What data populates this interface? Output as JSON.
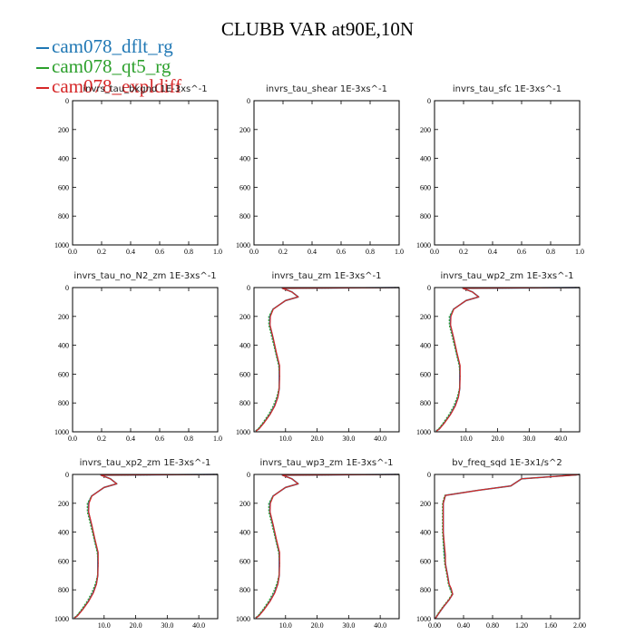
{
  "title": "CLUBB VAR at90E,10N",
  "legend": [
    {
      "label": "cam078_dflt_rg",
      "color": "#1f77b4"
    },
    {
      "label": "cam078_qt5_rg",
      "color": "#2ca02c"
    },
    {
      "label": "cam078_expldiff",
      "color": "#d62728"
    }
  ],
  "chart_data": [
    {
      "type": "line",
      "title": "invrs_tau_bkgnd   1E-3xs^-1",
      "xlim": [
        0,
        1
      ],
      "ylim": [
        1000,
        0
      ],
      "x_ticks": [
        "0.0",
        "0.2",
        "0.4",
        "0.6",
        "0.8",
        "1.0"
      ],
      "y_ticks": [
        "0",
        "200",
        "400",
        "600",
        "800",
        "1000"
      ],
      "series": []
    },
    {
      "type": "line",
      "title": "invrs_tau_shear   1E-3xs^-1",
      "xlim": [
        0,
        1
      ],
      "ylim": [
        1000,
        0
      ],
      "x_ticks": [
        "0.0",
        "0.2",
        "0.4",
        "0.6",
        "0.8",
        "1.0"
      ],
      "y_ticks": [
        "0",
        "200",
        "400",
        "600",
        "800",
        "1000"
      ],
      "series": []
    },
    {
      "type": "line",
      "title": "invrs_tau_sfc   1E-3xs^-1",
      "xlim": [
        0,
        1
      ],
      "ylim": [
        1000,
        0
      ],
      "x_ticks": [
        "0.0",
        "0.2",
        "0.4",
        "0.6",
        "0.8",
        "1.0"
      ],
      "y_ticks": [
        "0",
        "200",
        "400",
        "600",
        "800",
        "1000"
      ],
      "series": []
    },
    {
      "type": "line",
      "title": "invrs_tau_no_N2_zm   1E-3xs^-1",
      "xlim": [
        0,
        1
      ],
      "ylim": [
        1000,
        0
      ],
      "x_ticks": [
        "0.0",
        "0.2",
        "0.4",
        "0.6",
        "0.8",
        "1.0"
      ],
      "y_ticks": [
        "0",
        "200",
        "400",
        "600",
        "800",
        "1000"
      ],
      "series": []
    },
    {
      "type": "line",
      "title": "invrs_tau_zm   1E-3xs^-1",
      "xlim": [
        0,
        46
      ],
      "ylim": [
        1000,
        0
      ],
      "x_ticks": [
        "10.0",
        "20.0",
        "30.0",
        "40.0"
      ],
      "y_ticks": [
        "0",
        "200",
        "400",
        "600",
        "800",
        "1000"
      ],
      "series": [
        {
          "x": [
            46,
            9,
            12,
            14,
            10,
            8,
            6,
            5,
            5,
            6,
            7,
            8,
            8,
            8,
            7.5,
            6.5,
            5,
            3,
            1.5,
            0.5
          ],
          "y": [
            0,
            5,
            30,
            65,
            90,
            120,
            150,
            200,
            260,
            350,
            450,
            540,
            620,
            700,
            760,
            820,
            880,
            940,
            980,
            995
          ]
        },
        {
          "x": [
            46,
            9,
            12,
            14,
            10,
            8,
            6,
            4.7,
            4.7,
            5.7,
            6.8,
            7.8,
            8.1,
            7.9,
            7.2,
            6.1,
            4.6,
            2.7,
            1.3,
            0.4
          ],
          "y": [
            0,
            5,
            30,
            65,
            90,
            120,
            150,
            200,
            260,
            350,
            450,
            540,
            620,
            700,
            760,
            820,
            880,
            940,
            980,
            995
          ]
        },
        {
          "x": [
            46,
            9,
            12,
            14,
            10,
            8,
            6.1,
            5.2,
            5.1,
            6.1,
            7.1,
            8.1,
            8.1,
            8,
            7.6,
            6.6,
            5.1,
            3.1,
            1.6,
            0.6
          ],
          "y": [
            0,
            5,
            30,
            65,
            90,
            120,
            150,
            200,
            260,
            350,
            450,
            540,
            620,
            700,
            760,
            820,
            880,
            940,
            980,
            995
          ]
        }
      ]
    },
    {
      "type": "line",
      "title": "invrs_tau_wp2_zm   1E-3xs^-1",
      "xlim": [
        0,
        46
      ],
      "ylim": [
        1000,
        0
      ],
      "x_ticks": [
        "10.0",
        "20.0",
        "30.0",
        "40.0"
      ],
      "y_ticks": [
        "0",
        "200",
        "400",
        "600",
        "800",
        "1000"
      ],
      "series": [
        {
          "x": [
            46,
            9,
            12,
            14,
            10,
            8,
            6,
            5,
            5,
            6,
            7,
            8,
            8,
            8,
            7.5,
            6.5,
            5,
            3,
            1.5,
            0.5
          ],
          "y": [
            0,
            5,
            30,
            65,
            90,
            120,
            150,
            200,
            260,
            350,
            450,
            540,
            620,
            700,
            760,
            820,
            880,
            940,
            980,
            995
          ]
        },
        {
          "x": [
            46,
            9,
            12,
            14,
            10,
            8,
            6,
            4.7,
            4.7,
            5.7,
            6.8,
            7.8,
            8.1,
            7.9,
            7.2,
            6.1,
            4.6,
            2.7,
            1.3,
            0.4
          ],
          "y": [
            0,
            5,
            30,
            65,
            90,
            120,
            150,
            200,
            260,
            350,
            450,
            540,
            620,
            700,
            760,
            820,
            880,
            940,
            980,
            995
          ]
        },
        {
          "x": [
            46,
            9,
            12,
            14,
            10,
            8,
            6.1,
            5.2,
            5.1,
            6.1,
            7.1,
            8.1,
            8.1,
            8,
            7.6,
            6.6,
            5.1,
            3.1,
            1.6,
            0.6
          ],
          "y": [
            0,
            5,
            30,
            65,
            90,
            120,
            150,
            200,
            260,
            350,
            450,
            540,
            620,
            700,
            760,
            820,
            880,
            940,
            980,
            995
          ]
        }
      ]
    },
    {
      "type": "line",
      "title": "invrs_tau_xp2_zm   1E-3xs^-1",
      "xlim": [
        0,
        46
      ],
      "ylim": [
        1000,
        0
      ],
      "x_ticks": [
        "10.0",
        "20.0",
        "30.0",
        "40.0"
      ],
      "y_ticks": [
        "0",
        "200",
        "400",
        "600",
        "800",
        "1000"
      ],
      "series": [
        {
          "x": [
            46,
            9,
            12,
            14,
            10,
            8,
            6,
            5,
            5,
            6,
            7,
            8,
            8,
            8,
            7.5,
            6.5,
            5,
            3,
            1.5,
            0.5
          ],
          "y": [
            0,
            5,
            30,
            65,
            90,
            120,
            150,
            200,
            260,
            350,
            450,
            540,
            620,
            700,
            760,
            820,
            880,
            940,
            980,
            995
          ]
        },
        {
          "x": [
            46,
            9,
            12,
            14,
            10,
            8,
            6,
            4.7,
            4.7,
            5.7,
            6.8,
            7.8,
            8.1,
            7.9,
            7.2,
            6.1,
            4.6,
            2.7,
            1.3,
            0.4
          ],
          "y": [
            0,
            5,
            30,
            65,
            90,
            120,
            150,
            200,
            260,
            350,
            450,
            540,
            620,
            700,
            760,
            820,
            880,
            940,
            980,
            995
          ]
        },
        {
          "x": [
            46,
            9,
            12,
            14,
            10,
            8,
            6.1,
            5.2,
            5.1,
            6.1,
            7.1,
            8.1,
            8.1,
            8,
            7.6,
            6.6,
            5.1,
            3.1,
            1.6,
            0.6
          ],
          "y": [
            0,
            5,
            30,
            65,
            90,
            120,
            150,
            200,
            260,
            350,
            450,
            540,
            620,
            700,
            760,
            820,
            880,
            940,
            980,
            995
          ]
        }
      ]
    },
    {
      "type": "line",
      "title": "invrs_tau_wp3_zm   1E-3xs^-1",
      "xlim": [
        0,
        46
      ],
      "ylim": [
        1000,
        0
      ],
      "x_ticks": [
        "10.0",
        "20.0",
        "30.0",
        "40.0"
      ],
      "y_ticks": [
        "0",
        "200",
        "400",
        "600",
        "800",
        "1000"
      ],
      "series": [
        {
          "x": [
            46,
            9,
            12,
            14,
            10,
            8,
            6,
            5,
            5,
            6,
            7,
            8,
            8,
            8,
            7.5,
            6.5,
            5,
            3,
            1.5,
            0.5
          ],
          "y": [
            0,
            5,
            30,
            65,
            90,
            120,
            150,
            200,
            260,
            350,
            450,
            540,
            620,
            700,
            760,
            820,
            880,
            940,
            980,
            995
          ]
        },
        {
          "x": [
            46,
            9,
            12,
            14,
            10,
            8,
            6,
            4.7,
            4.7,
            5.7,
            6.8,
            7.8,
            8.1,
            7.9,
            7.2,
            6.1,
            4.6,
            2.7,
            1.3,
            0.4
          ],
          "y": [
            0,
            5,
            30,
            65,
            90,
            120,
            150,
            200,
            260,
            350,
            450,
            540,
            620,
            700,
            760,
            820,
            880,
            940,
            980,
            995
          ]
        },
        {
          "x": [
            46,
            9,
            12,
            14,
            10,
            8,
            6.1,
            5.2,
            5.1,
            6.1,
            7.1,
            8.1,
            8.1,
            8,
            7.6,
            6.6,
            5.1,
            3.1,
            1.6,
            0.6
          ],
          "y": [
            0,
            5,
            30,
            65,
            90,
            120,
            150,
            200,
            260,
            350,
            450,
            540,
            620,
            700,
            760,
            820,
            880,
            940,
            980,
            995
          ]
        }
      ]
    },
    {
      "type": "line",
      "title": "bv_freq_sqd   1E-3x1/s^2",
      "xlim": [
        0,
        2
      ],
      "ylim": [
        1000,
        0
      ],
      "x_ticks": [
        "0.00",
        "0.40",
        "0.80",
        "1.20",
        "1.60",
        "2.00"
      ],
      "y_ticks": [
        "0",
        "200",
        "400",
        "600",
        "800",
        "1000"
      ],
      "series": [
        {
          "x": [
            2.0,
            1.95,
            1.2,
            1.05,
            0.6,
            0.15,
            0.12,
            0.12,
            0.14,
            0.15,
            0.18,
            0.2,
            0.22,
            0.25,
            0.2,
            0.12,
            0.05,
            0.01
          ],
          "y": [
            0,
            3,
            30,
            80,
            110,
            145,
            200,
            400,
            560,
            620,
            700,
            760,
            790,
            830,
            870,
            920,
            970,
            1000
          ]
        },
        {
          "x": [
            2.0,
            1.95,
            1.2,
            1.05,
            0.6,
            0.14,
            0.11,
            0.11,
            0.13,
            0.14,
            0.17,
            0.19,
            0.21,
            0.24,
            0.19,
            0.11,
            0.04,
            0.01
          ],
          "y": [
            0,
            3,
            30,
            80,
            110,
            145,
            200,
            400,
            560,
            620,
            700,
            760,
            790,
            830,
            870,
            920,
            970,
            1000
          ]
        },
        {
          "x": [
            2.0,
            1.95,
            1.2,
            1.05,
            0.6,
            0.15,
            0.12,
            0.12,
            0.15,
            0.15,
            0.18,
            0.2,
            0.23,
            0.25,
            0.2,
            0.12,
            0.05,
            0.01
          ],
          "y": [
            0,
            3,
            30,
            80,
            110,
            145,
            200,
            400,
            560,
            620,
            700,
            760,
            790,
            830,
            870,
            920,
            970,
            1000
          ]
        }
      ]
    }
  ]
}
